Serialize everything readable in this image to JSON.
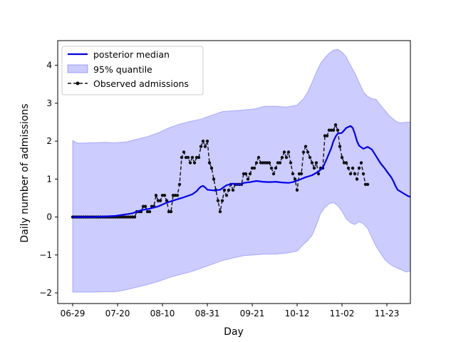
{
  "chart_data": {
    "type": "line",
    "xlabel": "Day",
    "ylabel": "Daily number of admissions",
    "x_tick_labels": [
      "06-29",
      "07-20",
      "08-10",
      "08-31",
      "09-21",
      "10-12",
      "11-02",
      "11-23"
    ],
    "x_tick_days": [
      0,
      21,
      42,
      63,
      84,
      105,
      126,
      147
    ],
    "x_range_days": [
      -7,
      158
    ],
    "y_ticks": [
      -2,
      -1,
      0,
      1,
      2,
      3,
      4
    ],
    "y_tick_labels": [
      "−2",
      "−1",
      "0",
      "1",
      "2",
      "3",
      "4"
    ],
    "ylim": [
      -2.28,
      4.65
    ],
    "legend_position": "upper-left",
    "grid": false,
    "series": [
      {
        "name": "posterior median",
        "color": "#0000ee",
        "kind": "line",
        "points": [
          [
            0,
            0
          ],
          [
            10,
            0
          ],
          [
            20,
            0.03
          ],
          [
            26,
            0.08
          ],
          [
            28,
            0.1
          ],
          [
            32,
            0.18
          ],
          [
            36,
            0.22
          ],
          [
            40,
            0.28
          ],
          [
            44,
            0.38
          ],
          [
            48,
            0.45
          ],
          [
            52,
            0.52
          ],
          [
            56,
            0.6
          ],
          [
            58,
            0.68
          ],
          [
            59,
            0.75
          ],
          [
            60,
            0.8
          ],
          [
            61,
            0.82
          ],
          [
            62,
            0.78
          ],
          [
            63,
            0.72
          ],
          [
            66,
            0.7
          ],
          [
            69,
            0.72
          ],
          [
            72,
            0.84
          ],
          [
            75,
            0.88
          ],
          [
            78,
            0.85
          ],
          [
            80,
            0.9
          ],
          [
            83,
            0.92
          ],
          [
            86,
            0.95
          ],
          [
            89,
            0.93
          ],
          [
            92,
            0.92
          ],
          [
            95,
            0.93
          ],
          [
            98,
            0.91
          ],
          [
            101,
            0.9
          ],
          [
            103,
            0.92
          ],
          [
            106,
            0.98
          ],
          [
            109,
            1.05
          ],
          [
            112,
            1.1
          ],
          [
            115,
            1.2
          ],
          [
            117,
            1.3
          ],
          [
            119,
            1.55
          ],
          [
            121,
            1.82
          ],
          [
            122,
            2.0
          ],
          [
            123,
            2.12
          ],
          [
            124,
            2.2
          ],
          [
            126,
            2.22
          ],
          [
            128,
            2.35
          ],
          [
            130,
            2.4
          ],
          [
            131,
            2.35
          ],
          [
            132,
            2.2
          ],
          [
            133,
            2.0
          ],
          [
            134,
            1.88
          ],
          [
            136,
            1.8
          ],
          [
            138,
            1.85
          ],
          [
            140,
            1.78
          ],
          [
            142,
            1.6
          ],
          [
            144,
            1.42
          ],
          [
            146,
            1.28
          ],
          [
            147,
            1.2
          ],
          [
            149,
            1.05
          ],
          [
            150,
            0.95
          ],
          [
            151,
            0.82
          ],
          [
            152,
            0.72
          ],
          [
            154,
            0.65
          ],
          [
            156,
            0.58
          ],
          [
            157,
            0.55
          ],
          [
            158,
            0.53
          ]
        ]
      },
      {
        "name": "95% quantile",
        "color": "#0000ff",
        "fill_opacity": 0.2,
        "kind": "band",
        "upper": [
          [
            0,
            2.02
          ],
          [
            2,
            1.95
          ],
          [
            5,
            1.95
          ],
          [
            10,
            1.96
          ],
          [
            15,
            1.97
          ],
          [
            20,
            1.96
          ],
          [
            25,
            1.98
          ],
          [
            30,
            2.05
          ],
          [
            35,
            2.12
          ],
          [
            40,
            2.22
          ],
          [
            45,
            2.35
          ],
          [
            50,
            2.45
          ],
          [
            55,
            2.52
          ],
          [
            60,
            2.58
          ],
          [
            65,
            2.68
          ],
          [
            70,
            2.78
          ],
          [
            75,
            2.8
          ],
          [
            80,
            2.82
          ],
          [
            85,
            2.85
          ],
          [
            90,
            2.92
          ],
          [
            95,
            2.92
          ],
          [
            100,
            2.9
          ],
          [
            105,
            2.95
          ],
          [
            108,
            3.12
          ],
          [
            110,
            3.3
          ],
          [
            112,
            3.55
          ],
          [
            114,
            3.82
          ],
          [
            116,
            4.05
          ],
          [
            118,
            4.2
          ],
          [
            120,
            4.32
          ],
          [
            122,
            4.4
          ],
          [
            124,
            4.42
          ],
          [
            126,
            4.35
          ],
          [
            128,
            4.22
          ],
          [
            130,
            4.0
          ],
          [
            132,
            3.8
          ],
          [
            134,
            3.55
          ],
          [
            136,
            3.3
          ],
          [
            138,
            3.18
          ],
          [
            140,
            3.12
          ],
          [
            142,
            3.1
          ],
          [
            144,
            2.95
          ],
          [
            146,
            2.82
          ],
          [
            148,
            2.68
          ],
          [
            150,
            2.58
          ],
          [
            152,
            2.5
          ],
          [
            154,
            2.48
          ],
          [
            156,
            2.5
          ],
          [
            158,
            2.5
          ]
        ],
        "lower": [
          [
            0,
            -1.98
          ],
          [
            2,
            -1.98
          ],
          [
            5,
            -1.98
          ],
          [
            10,
            -1.98
          ],
          [
            15,
            -1.97
          ],
          [
            20,
            -1.97
          ],
          [
            25,
            -1.92
          ],
          [
            30,
            -1.85
          ],
          [
            35,
            -1.78
          ],
          [
            40,
            -1.7
          ],
          [
            45,
            -1.6
          ],
          [
            50,
            -1.52
          ],
          [
            55,
            -1.45
          ],
          [
            60,
            -1.35
          ],
          [
            65,
            -1.25
          ],
          [
            70,
            -1.15
          ],
          [
            75,
            -1.08
          ],
          [
            80,
            -1.02
          ],
          [
            85,
            -1.0
          ],
          [
            90,
            -0.98
          ],
          [
            95,
            -0.98
          ],
          [
            100,
            -0.95
          ],
          [
            105,
            -0.9
          ],
          [
            108,
            -0.72
          ],
          [
            110,
            -0.62
          ],
          [
            112,
            -0.48
          ],
          [
            114,
            -0.22
          ],
          [
            116,
            0.1
          ],
          [
            118,
            0.25
          ],
          [
            120,
            0.35
          ],
          [
            122,
            0.38
          ],
          [
            124,
            0.3
          ],
          [
            126,
            0.15
          ],
          [
            128,
            -0.05
          ],
          [
            130,
            -0.15
          ],
          [
            132,
            -0.2
          ],
          [
            134,
            -0.12
          ],
          [
            136,
            -0.18
          ],
          [
            138,
            -0.3
          ],
          [
            140,
            -0.55
          ],
          [
            142,
            -0.78
          ],
          [
            144,
            -0.95
          ],
          [
            146,
            -1.12
          ],
          [
            148,
            -1.22
          ],
          [
            150,
            -1.3
          ],
          [
            152,
            -1.35
          ],
          [
            154,
            -1.4
          ],
          [
            156,
            -1.45
          ],
          [
            158,
            -1.42
          ]
        ]
      },
      {
        "name": "Observed admissions",
        "color": "#111111",
        "kind": "dashed-markers",
        "points": [
          [
            0,
            0
          ],
          [
            1,
            0
          ],
          [
            2,
            0
          ],
          [
            3,
            0
          ],
          [
            4,
            0
          ],
          [
            5,
            0
          ],
          [
            6,
            0
          ],
          [
            7,
            0
          ],
          [
            8,
            0
          ],
          [
            9,
            0
          ],
          [
            10,
            0
          ],
          [
            11,
            0
          ],
          [
            12,
            0
          ],
          [
            13,
            0
          ],
          [
            14,
            0
          ],
          [
            15,
            0
          ],
          [
            16,
            0
          ],
          [
            17,
            0
          ],
          [
            18,
            0
          ],
          [
            19,
            0
          ],
          [
            20,
            0
          ],
          [
            21,
            0
          ],
          [
            22,
            0
          ],
          [
            23,
            0
          ],
          [
            24,
            0
          ],
          [
            25,
            0
          ],
          [
            26,
            0
          ],
          [
            27,
            0
          ],
          [
            28,
            0
          ],
          [
            29,
            0
          ],
          [
            30,
            0.14
          ],
          [
            31,
            0.14
          ],
          [
            32,
            0.14
          ],
          [
            33,
            0.28
          ],
          [
            34,
            0.28
          ],
          [
            35,
            0.14
          ],
          [
            36,
            0.14
          ],
          [
            37,
            0.28
          ],
          [
            38,
            0.28
          ],
          [
            39,
            0.57
          ],
          [
            40,
            0.43
          ],
          [
            41,
            0.43
          ],
          [
            42,
            0.57
          ],
          [
            43,
            0.57
          ],
          [
            44,
            0.43
          ],
          [
            45,
            0.14
          ],
          [
            46,
            0.14
          ],
          [
            47,
            0.57
          ],
          [
            48,
            0.57
          ],
          [
            49,
            0.57
          ],
          [
            50,
            0.86
          ],
          [
            51,
            1.57
          ],
          [
            52,
            1.71
          ],
          [
            53,
            1.57
          ],
          [
            54,
            1.57
          ],
          [
            55,
            1.43
          ],
          [
            56,
            1.57
          ],
          [
            57,
            1.43
          ],
          [
            58,
            1.57
          ],
          [
            59,
            1.57
          ],
          [
            60,
            1.86
          ],
          [
            61,
            2.0
          ],
          [
            62,
            1.86
          ],
          [
            63,
            2.0
          ],
          [
            64,
            1.43
          ],
          [
            65,
            1.29
          ],
          [
            66,
            1.0
          ],
          [
            67,
            0.71
          ],
          [
            68,
            0.43
          ],
          [
            69,
            0.14
          ],
          [
            70,
            0.43
          ],
          [
            71,
            0.71
          ],
          [
            72,
            0.57
          ],
          [
            73,
            0.71
          ],
          [
            74,
            0.86
          ],
          [
            75,
            0.71
          ],
          [
            76,
            0.86
          ],
          [
            77,
            0.86
          ],
          [
            78,
            0.86
          ],
          [
            79,
            0.86
          ],
          [
            80,
            1.14
          ],
          [
            81,
            1.14
          ],
          [
            82,
            1.0
          ],
          [
            83,
            1.14
          ],
          [
            84,
            1.29
          ],
          [
            85,
            1.29
          ],
          [
            86,
            1.43
          ],
          [
            87,
            1.57
          ],
          [
            88,
            1.43
          ],
          [
            89,
            1.43
          ],
          [
            90,
            1.43
          ],
          [
            91,
            1.43
          ],
          [
            92,
            1.43
          ],
          [
            93,
            1.29
          ],
          [
            94,
            1.14
          ],
          [
            95,
            1.29
          ],
          [
            96,
            1.43
          ],
          [
            97,
            1.43
          ],
          [
            98,
            1.57
          ],
          [
            99,
            1.71
          ],
          [
            100,
            1.57
          ],
          [
            101,
            1.71
          ],
          [
            102,
            1.43
          ],
          [
            103,
            1.14
          ],
          [
            104,
            1.0
          ],
          [
            105,
            0.71
          ],
          [
            106,
            1.14
          ],
          [
            107,
            1.14
          ],
          [
            108,
            1.71
          ],
          [
            109,
            1.86
          ],
          [
            110,
            1.71
          ],
          [
            111,
            1.57
          ],
          [
            112,
            1.43
          ],
          [
            113,
            1.29
          ],
          [
            114,
            1.43
          ],
          [
            115,
            1.14
          ],
          [
            116,
            1.29
          ],
          [
            117,
            1.29
          ],
          [
            118,
            2.14
          ],
          [
            119,
            2.14
          ],
          [
            120,
            2.29
          ],
          [
            121,
            2.29
          ],
          [
            122,
            2.29
          ],
          [
            123,
            2.43
          ],
          [
            124,
            2.29
          ],
          [
            125,
            1.86
          ],
          [
            126,
            1.57
          ],
          [
            127,
            1.43
          ],
          [
            128,
            1.43
          ],
          [
            129,
            1.29
          ],
          [
            130,
            1.14
          ],
          [
            131,
            1.29
          ],
          [
            132,
            1.14
          ],
          [
            133,
            1.0
          ],
          [
            134,
            1.29
          ],
          [
            135,
            1.43
          ],
          [
            136,
            1.14
          ],
          [
            137,
            0.86
          ],
          [
            138,
            0.86
          ]
        ]
      }
    ]
  }
}
